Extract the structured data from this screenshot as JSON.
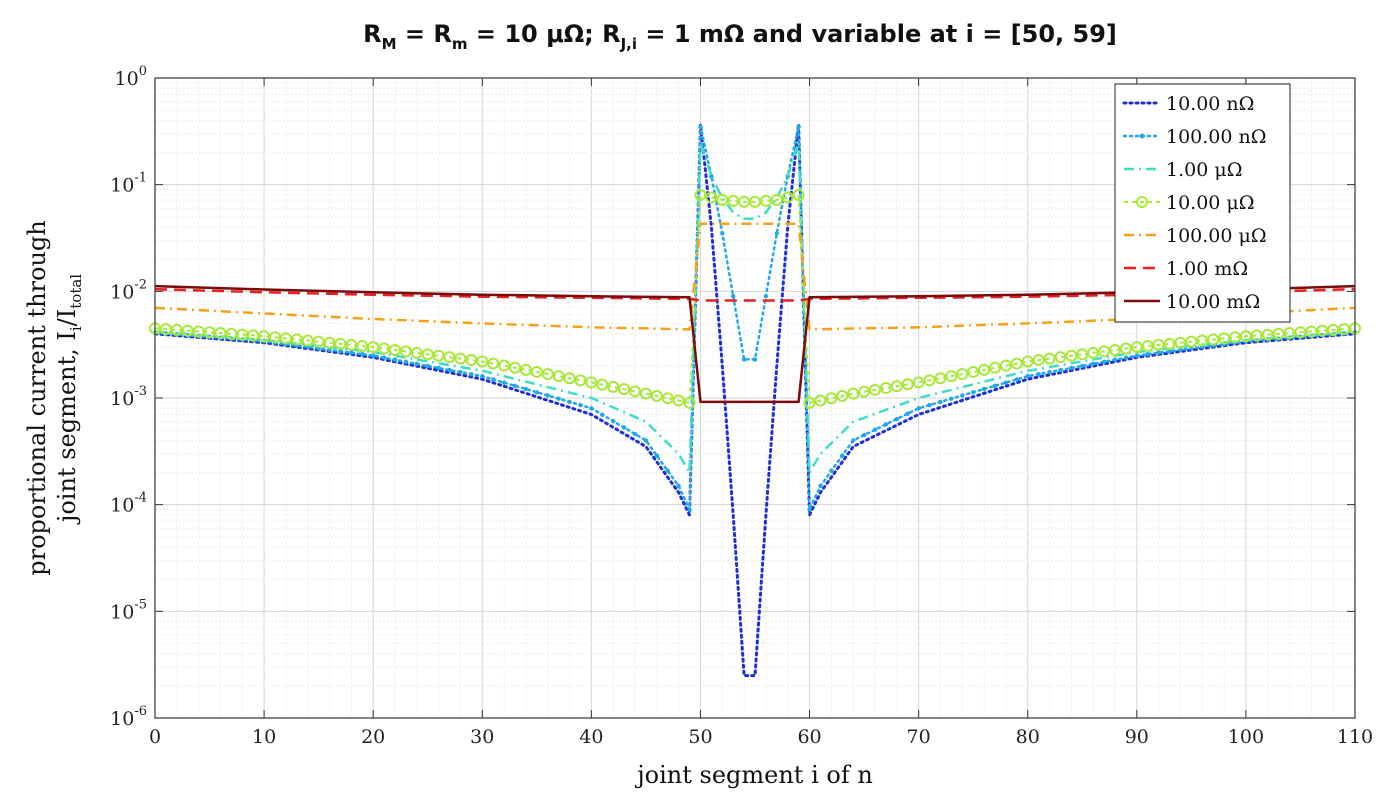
{
  "chart_data": {
    "type": "line",
    "title_parts": {
      "p1": "R",
      "s1": "M",
      "p2": " = R",
      "s2": "m",
      "p3": " = 10 μΩ; R",
      "s3": "J,i",
      "p4": " = 1 mΩ and variable at i = [50, 59]"
    },
    "xlabel": "joint segment i of n",
    "ylabel_line1": "proportional current through",
    "ylabel_line2_parts": {
      "p1": "joint segment, I",
      "s1": "i",
      "p2": "/I",
      "s2": "total"
    },
    "xlim": [
      0,
      110
    ],
    "ylim": [
      1e-06,
      1
    ],
    "yscale": "log",
    "grid": true,
    "x_ticks": [
      "0",
      "10",
      "20",
      "30",
      "40",
      "50",
      "60",
      "70",
      "80",
      "90",
      "100",
      "110"
    ],
    "y_ticks": [
      {
        "base": "10",
        "exp": "-6"
      },
      {
        "base": "10",
        "exp": "-5"
      },
      {
        "base": "10",
        "exp": "-4"
      },
      {
        "base": "10",
        "exp": "-3"
      },
      {
        "base": "10",
        "exp": "-2"
      },
      {
        "base": "10",
        "exp": "-1"
      },
      {
        "base": "10",
        "exp": "0"
      }
    ],
    "legend_position": "top-right",
    "series": [
      {
        "name": "10.00 nΩ",
        "color": "#1f2fd6",
        "style": "dotted",
        "points": [
          [
            0,
            0.004
          ],
          [
            10,
            0.0033
          ],
          [
            20,
            0.0024
          ],
          [
            30,
            0.0015
          ],
          [
            40,
            0.0007
          ],
          [
            45,
            0.00035
          ],
          [
            48,
            0.00013
          ],
          [
            49,
            8e-05
          ],
          [
            50,
            0.37
          ],
          [
            51,
            0.04
          ],
          [
            52,
            0.002
          ],
          [
            53,
            8e-05
          ],
          [
            54,
            2.5e-06
          ],
          [
            55,
            2.5e-06
          ],
          [
            56,
            8e-05
          ],
          [
            57,
            0.002
          ],
          [
            58,
            0.04
          ],
          [
            59,
            0.37
          ],
          [
            60,
            8e-05
          ],
          [
            61,
            0.00013
          ],
          [
            64,
            0.00035
          ],
          [
            70,
            0.0007
          ],
          [
            80,
            0.0015
          ],
          [
            90,
            0.0024
          ],
          [
            100,
            0.0033
          ],
          [
            110,
            0.004
          ]
        ]
      },
      {
        "name": "100.00 nΩ",
        "color": "#20a8e8",
        "style": "dot-marker",
        "points": [
          [
            0,
            0.0041
          ],
          [
            10,
            0.0034
          ],
          [
            20,
            0.0025
          ],
          [
            30,
            0.0016
          ],
          [
            40,
            0.0008
          ],
          [
            45,
            0.0004
          ],
          [
            48,
            0.00015
          ],
          [
            49,
            9e-05
          ],
          [
            50,
            0.35
          ],
          [
            51,
            0.12
          ],
          [
            52,
            0.035
          ],
          [
            53,
            0.009
          ],
          [
            54,
            0.0023
          ],
          [
            55,
            0.0023
          ],
          [
            56,
            0.009
          ],
          [
            57,
            0.035
          ],
          [
            58,
            0.12
          ],
          [
            59,
            0.35
          ],
          [
            60,
            9e-05
          ],
          [
            61,
            0.00015
          ],
          [
            64,
            0.0004
          ],
          [
            70,
            0.0008
          ],
          [
            80,
            0.0016
          ],
          [
            90,
            0.0025
          ],
          [
            100,
            0.0034
          ],
          [
            110,
            0.0041
          ]
        ]
      },
      {
        "name": "1.00 μΩ",
        "color": "#3fdcc6",
        "style": "dash-dot",
        "points": [
          [
            0,
            0.0042
          ],
          [
            10,
            0.0035
          ],
          [
            20,
            0.0027
          ],
          [
            30,
            0.0018
          ],
          [
            40,
            0.001
          ],
          [
            45,
            0.0006
          ],
          [
            48,
            0.0003
          ],
          [
            49,
            0.0002
          ],
          [
            50,
            0.25
          ],
          [
            51,
            0.12
          ],
          [
            52,
            0.075
          ],
          [
            53,
            0.055
          ],
          [
            54,
            0.048
          ],
          [
            55,
            0.048
          ],
          [
            56,
            0.055
          ],
          [
            57,
            0.075
          ],
          [
            58,
            0.12
          ],
          [
            59,
            0.25
          ],
          [
            60,
            0.0002
          ],
          [
            61,
            0.0003
          ],
          [
            64,
            0.0006
          ],
          [
            70,
            0.001
          ],
          [
            80,
            0.0018
          ],
          [
            90,
            0.0027
          ],
          [
            100,
            0.0035
          ],
          [
            110,
            0.0042
          ]
        ]
      },
      {
        "name": "10.00 μΩ",
        "color": "#a8e83a",
        "style": "circle-marker",
        "points": [
          [
            0,
            0.0045
          ],
          [
            10,
            0.0038
          ],
          [
            20,
            0.003
          ],
          [
            30,
            0.0022
          ],
          [
            40,
            0.0014
          ],
          [
            45,
            0.0011
          ],
          [
            49,
            0.0009
          ],
          [
            50,
            0.08
          ],
          [
            52,
            0.072
          ],
          [
            54,
            0.069
          ],
          [
            55,
            0.069
          ],
          [
            57,
            0.072
          ],
          [
            59,
            0.08
          ],
          [
            60,
            0.0009
          ],
          [
            64,
            0.0011
          ],
          [
            70,
            0.0014
          ],
          [
            80,
            0.0022
          ],
          [
            90,
            0.003
          ],
          [
            100,
            0.0038
          ],
          [
            110,
            0.0045
          ]
        ]
      },
      {
        "name": "100.00 μΩ",
        "color": "#f7a11a",
        "style": "dash-dot",
        "points": [
          [
            0,
            0.007
          ],
          [
            10,
            0.0062
          ],
          [
            20,
            0.0055
          ],
          [
            30,
            0.005
          ],
          [
            40,
            0.0046
          ],
          [
            49,
            0.0044
          ],
          [
            50,
            0.043
          ],
          [
            59,
            0.043
          ],
          [
            60,
            0.0044
          ],
          [
            70,
            0.0046
          ],
          [
            80,
            0.005
          ],
          [
            90,
            0.0055
          ],
          [
            100,
            0.0062
          ],
          [
            110,
            0.007
          ]
        ]
      },
      {
        "name": "1.00 mΩ",
        "color": "#e82020",
        "style": "dashed",
        "points": [
          [
            0,
            0.0105
          ],
          [
            10,
            0.0098
          ],
          [
            20,
            0.0093
          ],
          [
            30,
            0.0089
          ],
          [
            40,
            0.0087
          ],
          [
            49,
            0.0085
          ],
          [
            50,
            0.0082
          ],
          [
            59,
            0.0082
          ],
          [
            60,
            0.0085
          ],
          [
            70,
            0.0087
          ],
          [
            80,
            0.0089
          ],
          [
            90,
            0.0093
          ],
          [
            100,
            0.0098
          ],
          [
            110,
            0.0105
          ]
        ]
      },
      {
        "name": "10.00 mΩ",
        "color": "#7a0c0c",
        "style": "solid",
        "points": [
          [
            0,
            0.0112
          ],
          [
            10,
            0.0104
          ],
          [
            20,
            0.0098
          ],
          [
            30,
            0.0093
          ],
          [
            40,
            0.009
          ],
          [
            49,
            0.0088
          ],
          [
            50,
            0.00092
          ],
          [
            59,
            0.00092
          ],
          [
            60,
            0.0088
          ],
          [
            70,
            0.009
          ],
          [
            80,
            0.0093
          ],
          [
            90,
            0.0098
          ],
          [
            100,
            0.0104
          ],
          [
            110,
            0.0112
          ]
        ]
      }
    ]
  }
}
